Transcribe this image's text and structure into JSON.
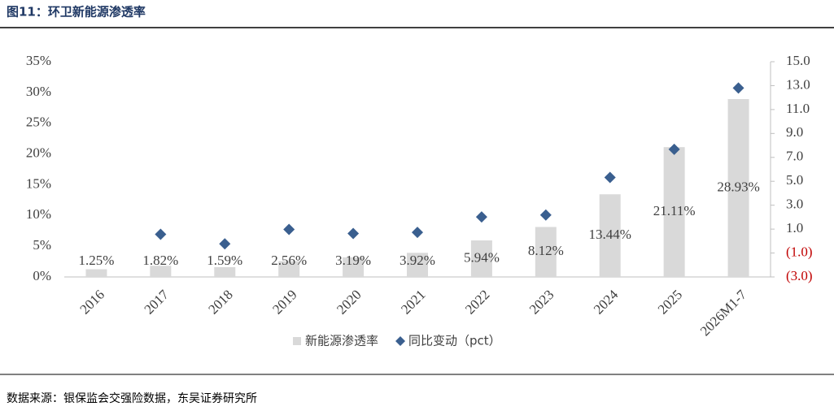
{
  "chart_data": {
    "type": "combo",
    "title": "图11：环卫新能源渗透率",
    "source": "数据来源：银保监会交强险数据，东吴证券研究所",
    "categories": [
      "2016",
      "2017",
      "2018",
      "2019",
      "2020",
      "2021",
      "2022",
      "2023",
      "2024",
      "2025",
      "2026M1-7"
    ],
    "series": [
      {
        "type": "bar",
        "name": "新能源渗透率",
        "color": "#d9d9d9",
        "values": [
          1.25,
          1.82,
          1.59,
          2.56,
          3.19,
          3.92,
          5.94,
          8.12,
          13.44,
          21.11,
          28.93
        ],
        "value_labels": [
          "1.25%",
          "1.82%",
          "1.59%",
          "2.56%",
          "3.19%",
          "3.92%",
          "5.94%",
          "8.12%",
          "13.44%",
          "21.11%",
          "28.93%"
        ]
      },
      {
        "type": "scatter",
        "name": "同比变动（pct）",
        "color": "#3a5f8f",
        "axis": "y2",
        "values": [
          null,
          0.57,
          -0.23,
          0.97,
          0.63,
          0.73,
          2.02,
          2.18,
          5.32,
          7.67,
          12.8
        ]
      }
    ],
    "ylim": [
      0,
      35
    ],
    "yticks": [
      {
        "value": 0,
        "label": "0%"
      },
      {
        "value": 5,
        "label": "5%"
      },
      {
        "value": 10,
        "label": "10%"
      },
      {
        "value": 15,
        "label": "15%"
      },
      {
        "value": 20,
        "label": "20%"
      },
      {
        "value": 25,
        "label": "25%"
      },
      {
        "value": 30,
        "label": "30%"
      },
      {
        "value": 35,
        "label": "35%"
      }
    ],
    "y2lim": [
      -3,
      15
    ],
    "y2ticks": [
      {
        "value": -3,
        "label": "(3.0)"
      },
      {
        "value": -1,
        "label": "(1.0)"
      },
      {
        "value": 1,
        "label": "1.0"
      },
      {
        "value": 3,
        "label": "3.0"
      },
      {
        "value": 5,
        "label": "5.0"
      },
      {
        "value": 7,
        "label": "7.0"
      },
      {
        "value": 9,
        "label": "9.0"
      },
      {
        "value": 11,
        "label": "11.0"
      },
      {
        "value": 13,
        "label": "13.0"
      },
      {
        "value": 15,
        "label": "15.0"
      }
    ],
    "negative_tick_color": "#c00000",
    "grid": false,
    "legend": "bottom"
  }
}
